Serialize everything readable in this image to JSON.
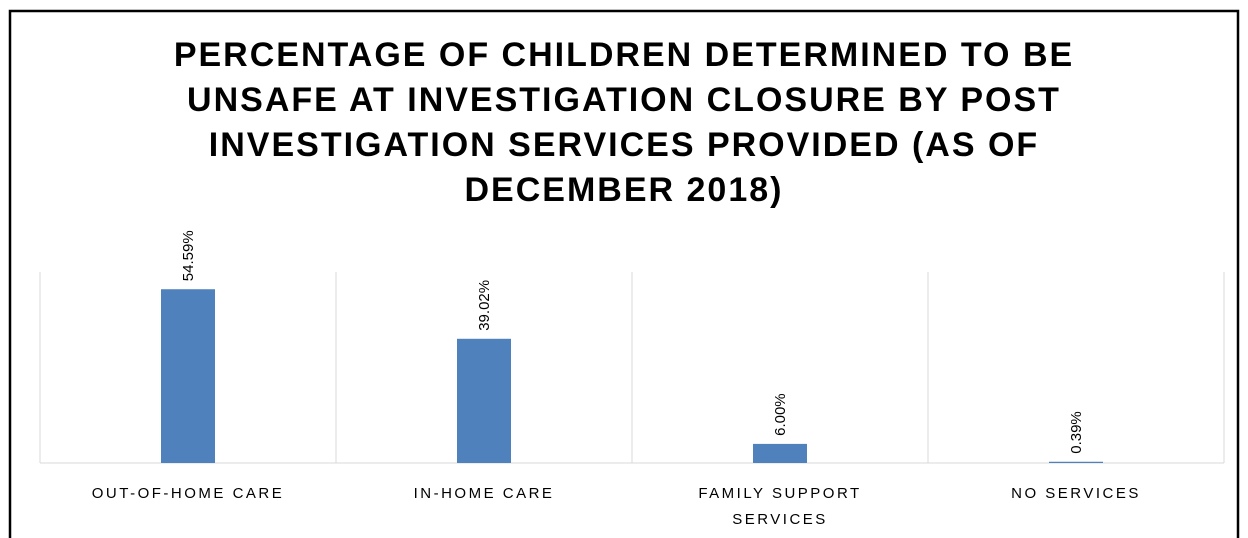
{
  "chart_data": {
    "type": "bar",
    "title": "PERCENTAGE OF CHILDREN DETERMINED TO BE UNSAFE AT INVESTIGATION CLOSURE BY POST INVESTIGATION SERVICES PROVIDED (AS OF DECEMBER 2018)",
    "categories": [
      "OUT-OF-HOME CARE",
      "IN-HOME CARE",
      "FAMILY SUPPORT SERVICES",
      "NO SERVICES"
    ],
    "values": [
      54.59,
      39.02,
      6.0,
      0.39
    ],
    "value_labels": [
      "54.59%",
      "39.02%",
      "6.00%",
      "0.39%"
    ],
    "color": "#4f81bd",
    "ylim": [
      0,
      60
    ]
  }
}
